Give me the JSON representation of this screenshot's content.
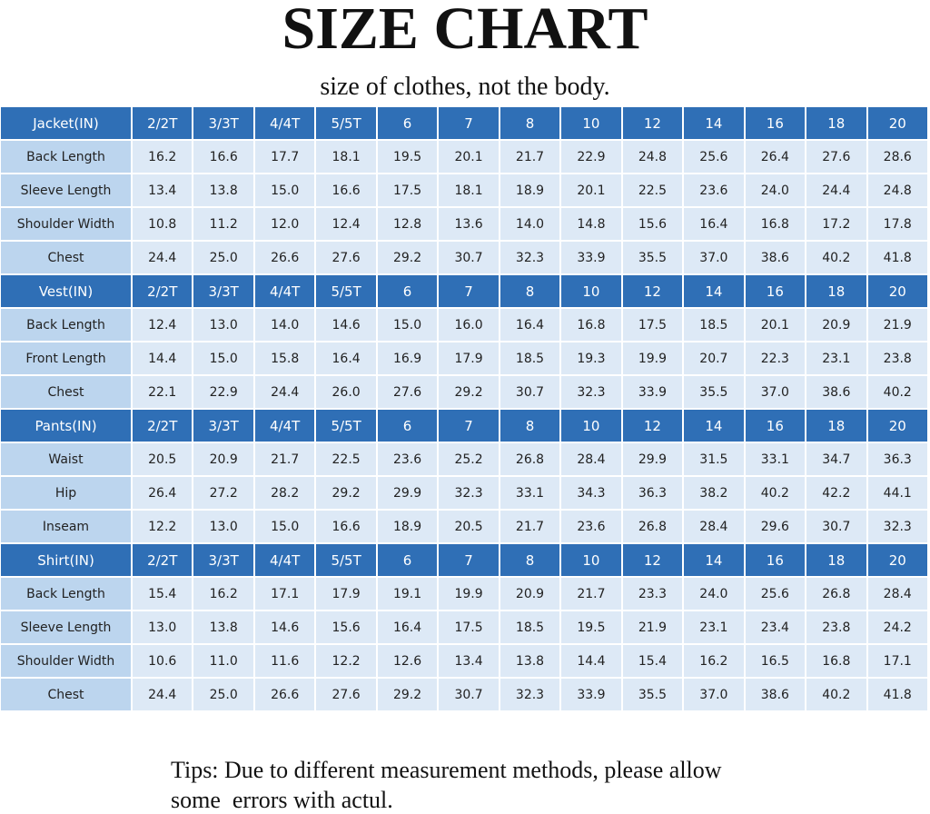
{
  "header": {
    "title": "SIZE CHART",
    "subtitle": "size of clothes, not the body."
  },
  "sections": [
    {
      "header": "Jacket(IN)",
      "sizes": [
        "2/2T",
        "3/3T",
        "4/4T",
        "5/5T",
        "6",
        "7",
        "8",
        "10",
        "12",
        "14",
        "16",
        "18",
        "20"
      ],
      "rows": [
        {
          "label": "Back Length",
          "values": [
            "16.2",
            "16.6",
            "17.7",
            "18.1",
            "19.5",
            "20.1",
            "21.7",
            "22.9",
            "24.8",
            "25.6",
            "26.4",
            "27.6",
            "28.6"
          ]
        },
        {
          "label": "Sleeve Length",
          "values": [
            "13.4",
            "13.8",
            "15.0",
            "16.6",
            "17.5",
            "18.1",
            "18.9",
            "20.1",
            "22.5",
            "23.6",
            "24.0",
            "24.4",
            "24.8"
          ]
        },
        {
          "label": "Shoulder Width",
          "values": [
            "10.8",
            "11.2",
            "12.0",
            "12.4",
            "12.8",
            "13.6",
            "14.0",
            "14.8",
            "15.6",
            "16.4",
            "16.8",
            "17.2",
            "17.8"
          ]
        },
        {
          "label": "Chest",
          "values": [
            "24.4",
            "25.0",
            "26.6",
            "27.6",
            "29.2",
            "30.7",
            "32.3",
            "33.9",
            "35.5",
            "37.0",
            "38.6",
            "40.2",
            "41.8"
          ]
        }
      ]
    },
    {
      "header": "Vest(IN)",
      "sizes": [
        "2/2T",
        "3/3T",
        "4/4T",
        "5/5T",
        "6",
        "7",
        "8",
        "10",
        "12",
        "14",
        "16",
        "18",
        "20"
      ],
      "rows": [
        {
          "label": "Back Length",
          "values": [
            "12.4",
            "13.0",
            "14.0",
            "14.6",
            "15.0",
            "16.0",
            "16.4",
            "16.8",
            "17.5",
            "18.5",
            "20.1",
            "20.9",
            "21.9"
          ]
        },
        {
          "label": "Front Length",
          "values": [
            "14.4",
            "15.0",
            "15.8",
            "16.4",
            "16.9",
            "17.9",
            "18.5",
            "19.3",
            "19.9",
            "20.7",
            "22.3",
            "23.1",
            "23.8"
          ]
        },
        {
          "label": "Chest",
          "values": [
            "22.1",
            "22.9",
            "24.4",
            "26.0",
            "27.6",
            "29.2",
            "30.7",
            "32.3",
            "33.9",
            "35.5",
            "37.0",
            "38.6",
            "40.2"
          ]
        }
      ]
    },
    {
      "header": "Pants(IN)",
      "sizes": [
        "2/2T",
        "3/3T",
        "4/4T",
        "5/5T",
        "6",
        "7",
        "8",
        "10",
        "12",
        "14",
        "16",
        "18",
        "20"
      ],
      "rows": [
        {
          "label": "Waist",
          "values": [
            "20.5",
            "20.9",
            "21.7",
            "22.5",
            "23.6",
            "25.2",
            "26.8",
            "28.4",
            "29.9",
            "31.5",
            "33.1",
            "34.7",
            "36.3"
          ]
        },
        {
          "label": "Hip",
          "values": [
            "26.4",
            "27.2",
            "28.2",
            "29.2",
            "29.9",
            "32.3",
            "33.1",
            "34.3",
            "36.3",
            "38.2",
            "40.2",
            "42.2",
            "44.1"
          ]
        },
        {
          "label": "Inseam",
          "values": [
            "12.2",
            "13.0",
            "15.0",
            "16.6",
            "18.9",
            "20.5",
            "21.7",
            "23.6",
            "26.8",
            "28.4",
            "29.6",
            "30.7",
            "32.3"
          ]
        }
      ]
    },
    {
      "header": "Shirt(IN)",
      "sizes": [
        "2/2T",
        "3/3T",
        "4/4T",
        "5/5T",
        "6",
        "7",
        "8",
        "10",
        "12",
        "14",
        "16",
        "18",
        "20"
      ],
      "rows": [
        {
          "label": "Back Length",
          "values": [
            "15.4",
            "16.2",
            "17.1",
            "17.9",
            "19.1",
            "19.9",
            "20.9",
            "21.7",
            "23.3",
            "24.0",
            "25.6",
            "26.8",
            "28.4"
          ]
        },
        {
          "label": "Sleeve Length",
          "values": [
            "13.0",
            "13.8",
            "14.6",
            "15.6",
            "16.4",
            "17.5",
            "18.5",
            "19.5",
            "21.9",
            "23.1",
            "23.4",
            "23.8",
            "24.2"
          ]
        },
        {
          "label": "Shoulder Width",
          "values": [
            "10.6",
            "11.0",
            "11.6",
            "12.2",
            "12.6",
            "13.4",
            "13.8",
            "14.4",
            "15.4",
            "16.2",
            "16.5",
            "16.8",
            "17.1"
          ]
        },
        {
          "label": "Chest",
          "values": [
            "24.4",
            "25.0",
            "26.6",
            "27.6",
            "29.2",
            "30.7",
            "32.3",
            "33.9",
            "35.5",
            "37.0",
            "38.6",
            "40.2",
            "41.8"
          ]
        }
      ]
    }
  ],
  "footer": {
    "tips": [
      "Tips: Due to different measurement methods, please allow",
      "some  errors with actul."
    ]
  }
}
